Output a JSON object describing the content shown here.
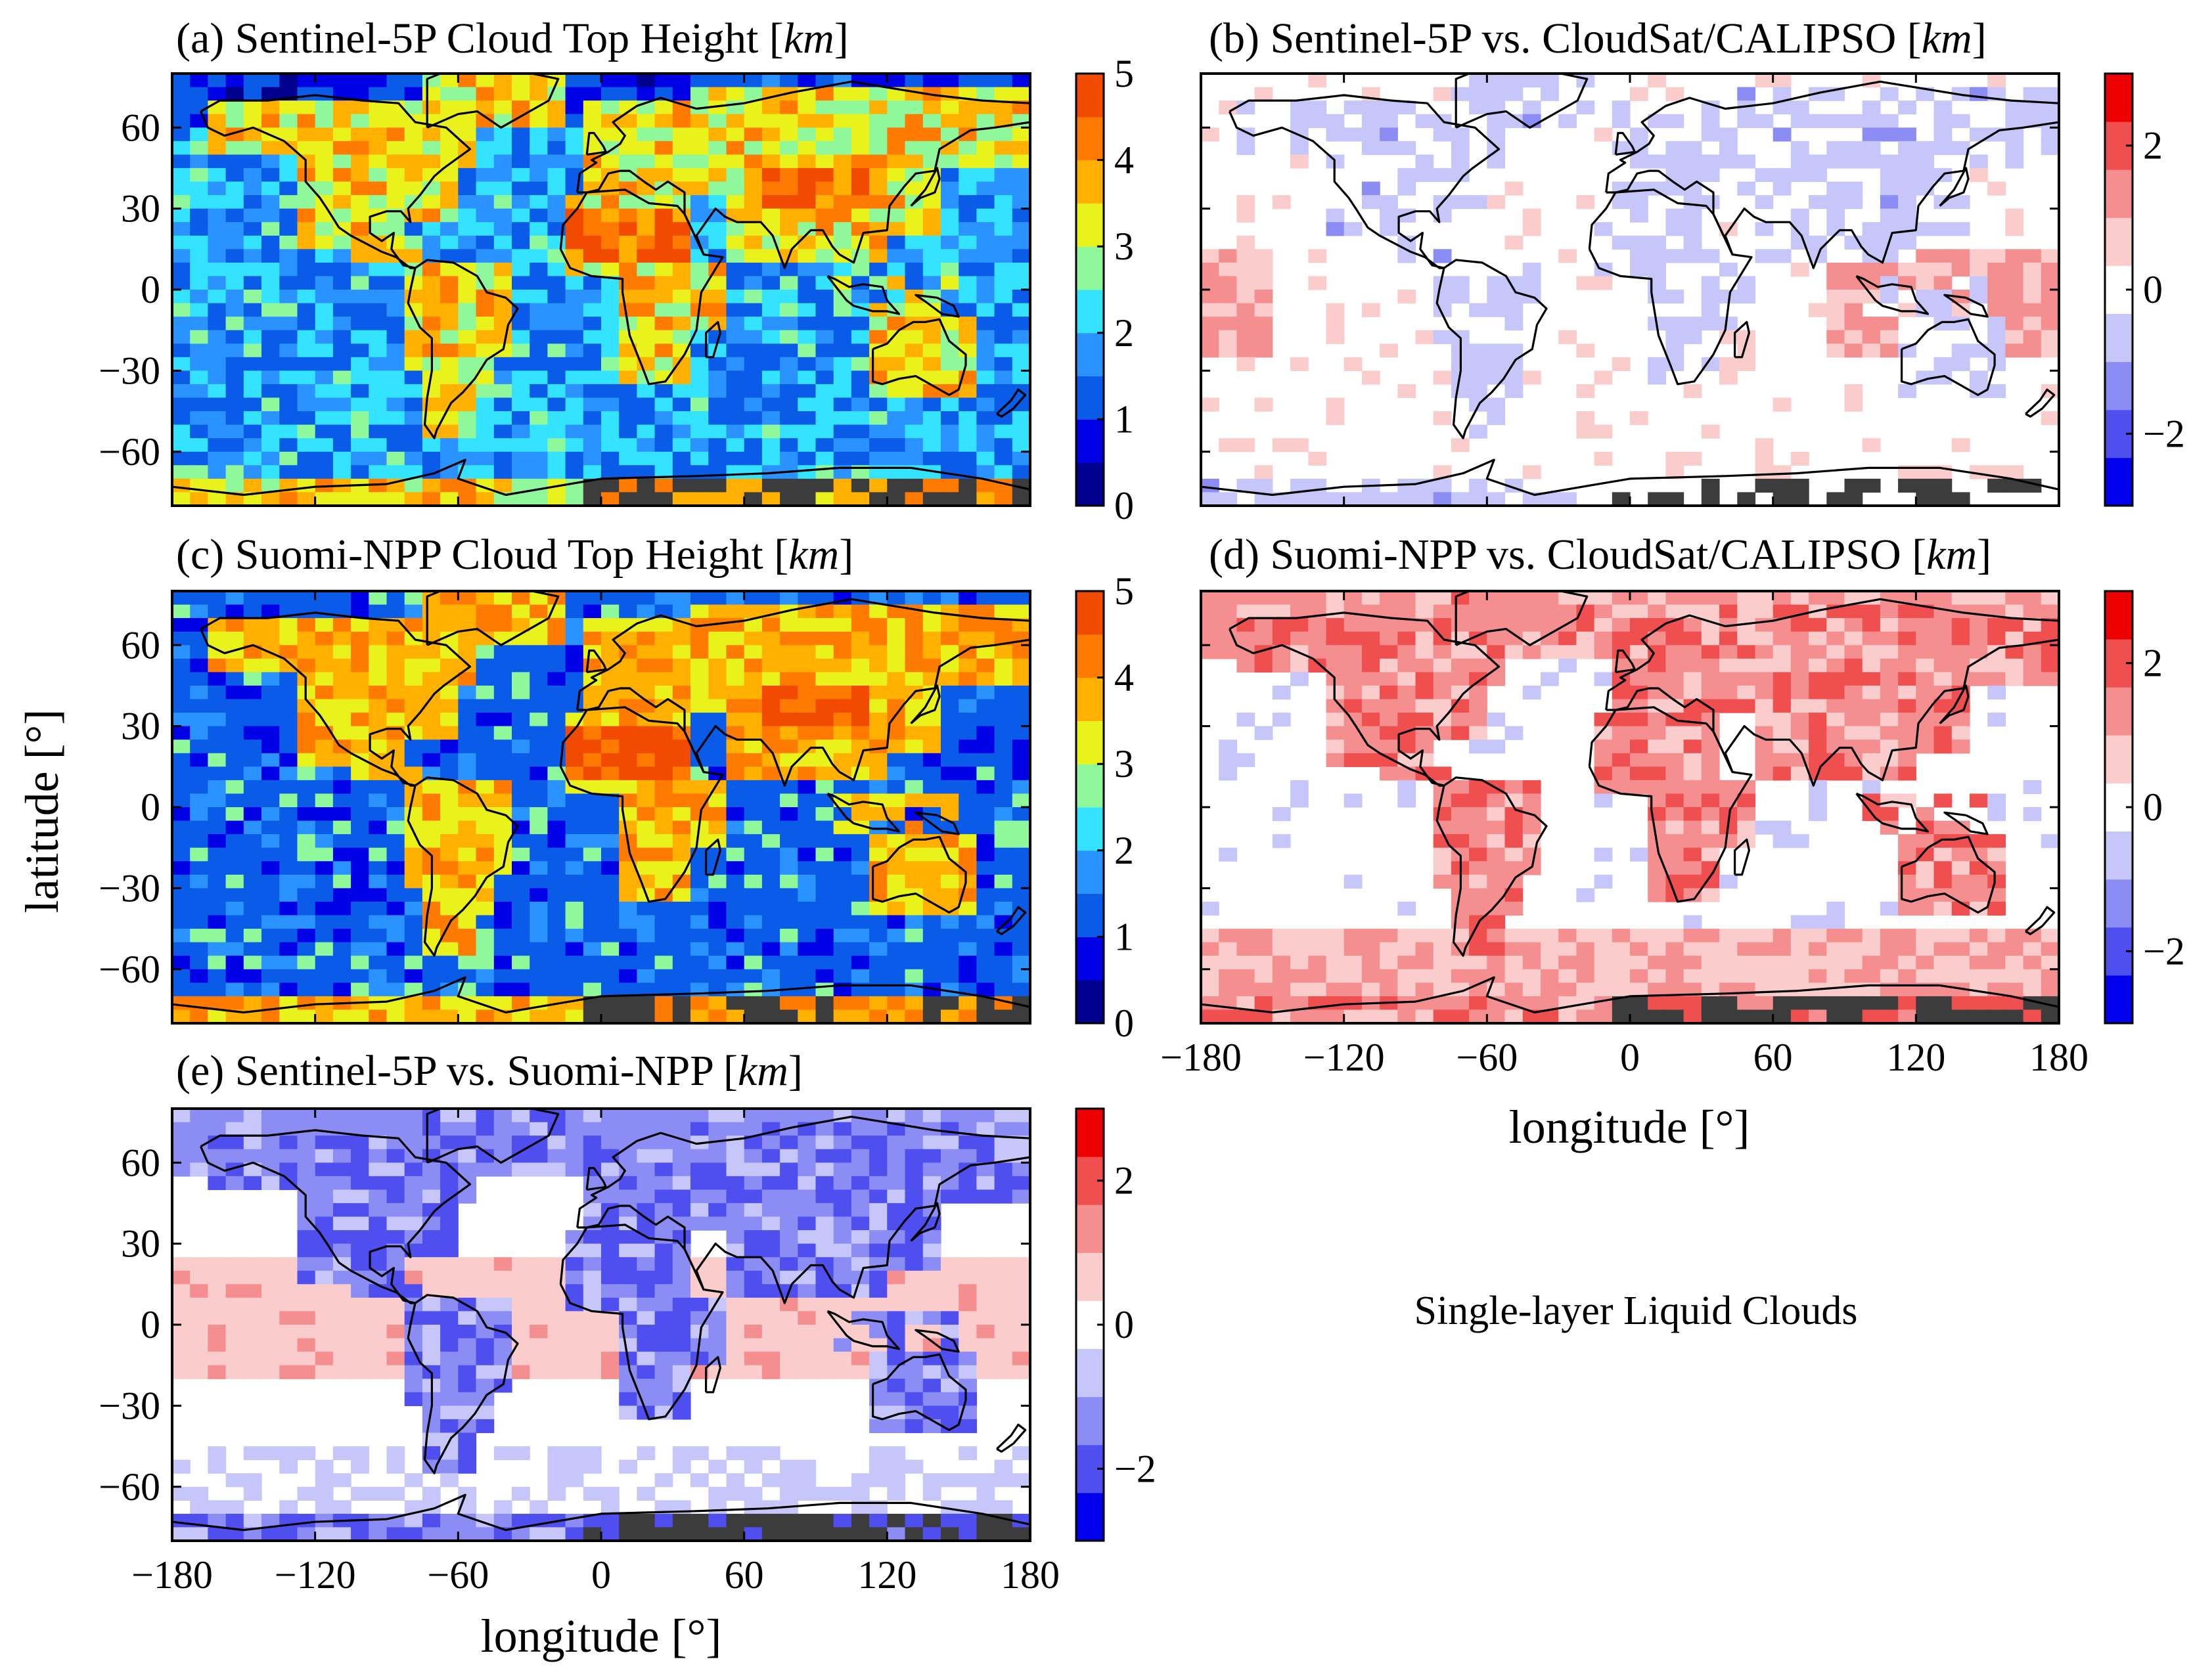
{
  "figure": {
    "ylabel": "latitude  [°]",
    "xlabel_right": "longitude  [°]",
    "xlabel_bottom": "longitude  [°]",
    "annotation": "Single-layer Liquid Clouds"
  },
  "chart_data": [
    {
      "id": "a",
      "type": "heatmap",
      "title": "(a)  Sentinel-5P  Cloud  Top  Height  [",
      "unit": "km",
      "x": {
        "range": [
          -180,
          180
        ],
        "ticks": [
          -180,
          -120,
          -60,
          0,
          60,
          120,
          180
        ],
        "show_ticklabels": false
      },
      "y": {
        "range": [
          -80,
          80
        ],
        "ticks": [
          60,
          30,
          0,
          -30,
          -60
        ],
        "tick_labels": [
          "60",
          "30",
          "0",
          "−30",
          "−60"
        ]
      },
      "colorbar": {
        "range": [
          0,
          5
        ],
        "ticks": [
          0,
          1,
          2,
          3,
          4,
          5
        ],
        "tick_labels": [
          "0",
          "1",
          "2",
          "3",
          "4",
          "5"
        ],
        "colormap": "jet-discrete"
      },
      "description_of_field": "Mean cloud top height on a ~7.5x5 degree grid; oceans ~1-2.5 km, continents (Sahara, Asia, Australia) up to ~5 km, Antarctica missing (dark grey)."
    },
    {
      "id": "b",
      "type": "heatmap",
      "title": "(b)  Sentinel-5P  vs.  CloudSat/CALIPSO  [",
      "unit": "km",
      "x": {
        "range": [
          -180,
          180
        ],
        "ticks": [
          -180,
          -120,
          -60,
          0,
          60,
          120,
          180
        ],
        "show_ticklabels": false
      },
      "y": {
        "range": [
          -80,
          80
        ],
        "ticks": [
          60,
          30,
          0,
          -30,
          -60
        ],
        "show_ticklabels": false
      },
      "colorbar": {
        "range": [
          -3,
          3
        ],
        "ticks": [
          2,
          0,
          -2
        ],
        "tick_labels": [
          "2",
          "0",
          "−2"
        ],
        "colormap": "blue-white-red"
      },
      "description_of_field": "Difference mostly near zero; slight positive over tropical/ W Pacific ocean, slight negative over land."
    },
    {
      "id": "c",
      "type": "heatmap",
      "title": "(c)  Suomi-NPP  Cloud  Top  Height  [",
      "unit": "km",
      "x": {
        "range": [
          -180,
          180
        ],
        "ticks": [
          -180,
          -120,
          -60,
          0,
          60,
          120,
          180
        ],
        "show_ticklabels": false
      },
      "y": {
        "range": [
          -80,
          80
        ],
        "ticks": [
          60,
          30,
          0,
          -30,
          -60
        ],
        "tick_labels": [
          "60",
          "30",
          "0",
          "−30",
          "−60"
        ]
      },
      "colorbar": {
        "range": [
          0,
          5
        ],
        "ticks": [
          0,
          1,
          2,
          3,
          4,
          5
        ],
        "tick_labels": [
          "0",
          "1",
          "2",
          "3",
          "4",
          "5"
        ],
        "colormap": "jet-discrete"
      },
      "description_of_field": "Oceans ~1-1.5 km; continents 3-5 km."
    },
    {
      "id": "d",
      "type": "heatmap",
      "title": "(d)  Suomi-NPP  vs.  CloudSat/CALIPSO  [",
      "unit": "km",
      "x": {
        "range": [
          -180,
          180
        ],
        "ticks": [
          -180,
          -120,
          -60,
          0,
          60,
          120,
          180
        ],
        "tick_labels": [
          "−180",
          "−120",
          "−60",
          "0",
          "60",
          "120",
          "180"
        ]
      },
      "y": {
        "range": [
          -80,
          80
        ],
        "ticks": [
          60,
          30,
          0,
          -30,
          -60
        ],
        "show_ticklabels": false
      },
      "colorbar": {
        "range": [
          -3,
          3
        ],
        "ticks": [
          2,
          0,
          -2
        ],
        "tick_labels": [
          "2",
          "0",
          "−2"
        ],
        "colormap": "blue-white-red"
      },
      "description_of_field": "Positive bias over land and Southern Ocean, near zero elsewhere."
    },
    {
      "id": "e",
      "type": "heatmap",
      "title": "(e)  Sentinel-5P  vs.  Suomi-NPP  [",
      "unit": "km",
      "x": {
        "range": [
          -180,
          180
        ],
        "ticks": [
          -180,
          -120,
          -60,
          0,
          60,
          120,
          180
        ],
        "tick_labels": [
          "−180",
          "−120",
          "−60",
          "0",
          "60",
          "120",
          "180"
        ]
      },
      "y": {
        "range": [
          -80,
          80
        ],
        "ticks": [
          60,
          30,
          0,
          -30,
          -60
        ],
        "tick_labels": [
          "60",
          "30",
          "0",
          "−30",
          "−60"
        ]
      },
      "colorbar": {
        "range": [
          -3,
          3
        ],
        "ticks": [
          2,
          0,
          -2
        ],
        "tick_labels": [
          "2",
          "0",
          "−2"
        ],
        "colormap": "blue-white-red"
      },
      "description_of_field": "Negative over land (-1 to -3), slightly positive over tropical oceans."
    }
  ],
  "colors": {
    "missing": "#3c3c3c",
    "coastline": "#000000",
    "jet": [
      "#00008f",
      "#0000e6",
      "#0a5be8",
      "#2a93ff",
      "#33e3ff",
      "#8ef89a",
      "#e9f21a",
      "#ffb000",
      "#ff7a00",
      "#f24a00"
    ],
    "diverging": [
      "#0000ee",
      "#4f4ff0",
      "#8c8cf5",
      "#c6c6fb",
      "#ffffff",
      "#fbcccc",
      "#f58f8f",
      "#ef4f4f",
      "#ee0000"
    ]
  }
}
